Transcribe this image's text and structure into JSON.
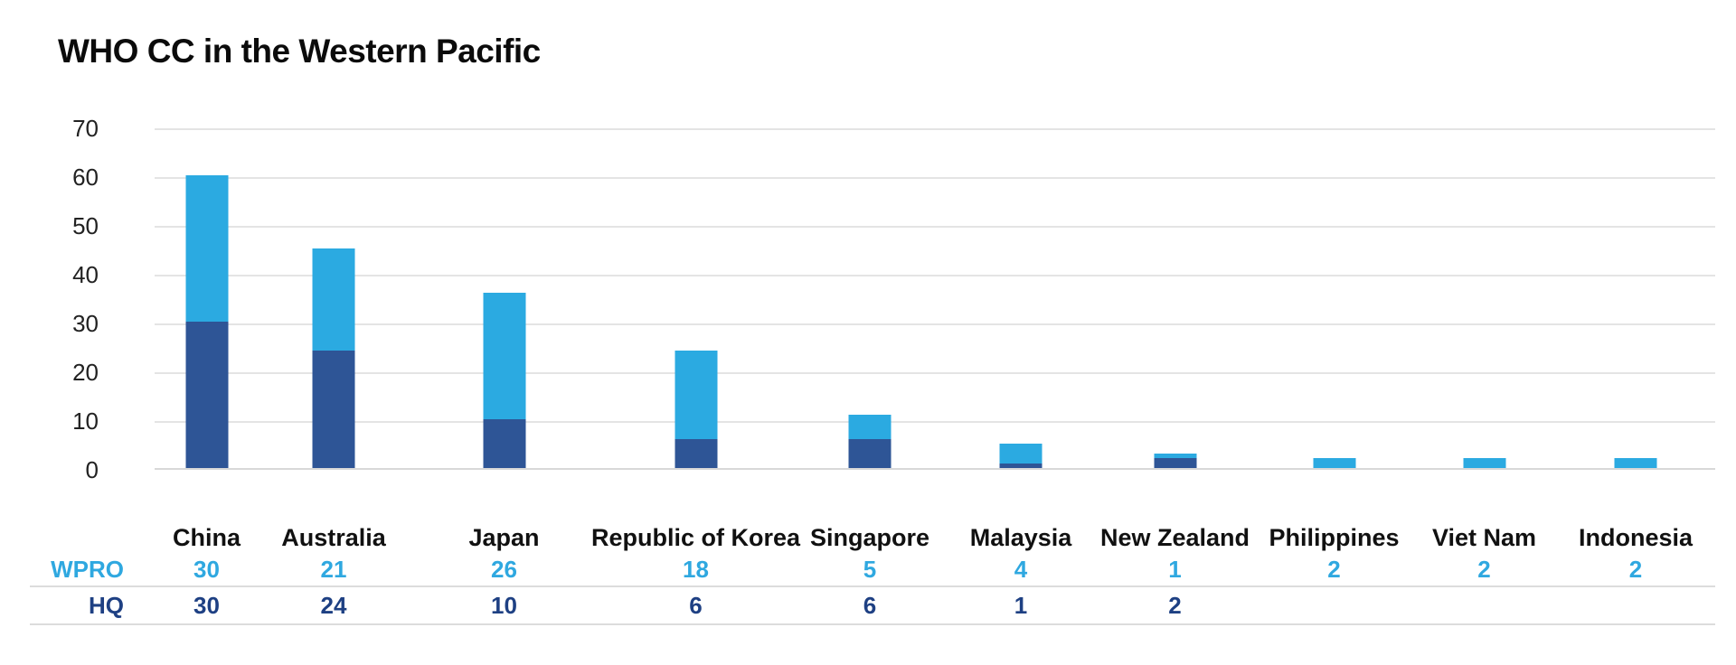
{
  "title": "WHO CC in the Western Pacific",
  "colors": {
    "wpro_light_blue": "#2baae1",
    "hq_dark_blue": "#2e5596",
    "wpro_text": "#2fa8e0",
    "hq_text": "#1e4083",
    "gridline": "#e4e4e4",
    "baseline": "#d8d8d8",
    "divider": "#dcdcdc",
    "title_text": "#0b0b0b"
  },
  "chart_data": {
    "type": "bar",
    "stacked": true,
    "title": "WHO CC in the Western Pacific",
    "categories": [
      "China",
      "Australia",
      "Japan",
      "Republic of Korea",
      "Singapore",
      "Malaysia",
      "New Zealand",
      "Philippines",
      "Viet Nam",
      "Indonesia"
    ],
    "series": [
      {
        "name": "WPRO",
        "color": "#2baae1",
        "values": [
          30,
          21,
          26,
          18,
          5,
          4,
          1,
          2,
          2,
          2
        ]
      },
      {
        "name": "HQ",
        "color": "#2e5596",
        "values": [
          30,
          24,
          10,
          6,
          6,
          1,
          2,
          null,
          null,
          null
        ]
      }
    ],
    "totals": [
      60,
      45,
      36,
      24,
      11,
      5,
      3,
      2,
      2,
      2
    ],
    "stack_order_bottom_to_top": [
      "HQ",
      "WPRO"
    ],
    "xlabel": "",
    "ylabel": "",
    "ylim": [
      0,
      70
    ],
    "yticks": [
      0,
      10,
      20,
      30,
      40,
      50,
      60,
      70
    ],
    "grid": "horizontal",
    "legend": "none (legend provided by data table below chart)"
  },
  "table": {
    "header": [
      "China",
      "Australia",
      "Japan",
      "Republic of Korea",
      "Singapore",
      "Malaysia",
      "New Zealand",
      "Philippines",
      "Viet Nam",
      "Indonesia"
    ],
    "rows": [
      {
        "label": "WPRO",
        "values": [
          "30",
          "21",
          "26",
          "18",
          "5",
          "4",
          "1",
          "2",
          "2",
          "2"
        ]
      },
      {
        "label": "HQ",
        "values": [
          "30",
          "24",
          "10",
          "6",
          "6",
          "1",
          "2",
          "",
          "",
          ""
        ]
      }
    ]
  }
}
